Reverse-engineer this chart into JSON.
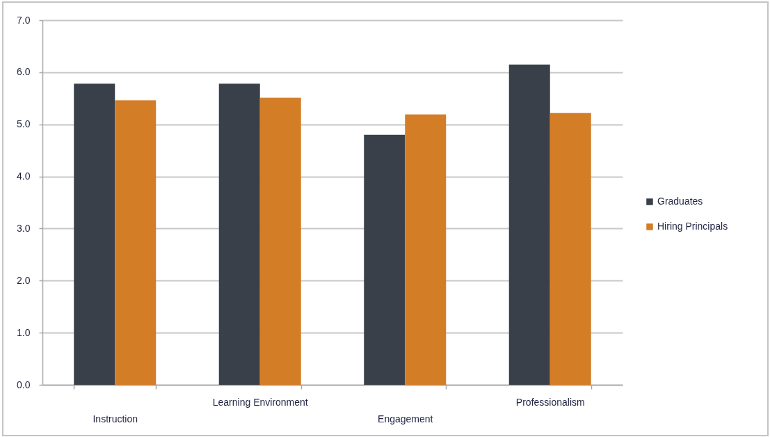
{
  "chart_data": {
    "type": "bar",
    "categories": [
      "Instruction",
      "Learning Environment",
      "Engagement",
      "Professionalism"
    ],
    "series": [
      {
        "name": "Graduates",
        "color": "#394049",
        "values": [
          5.78,
          5.78,
          4.8,
          6.15
        ]
      },
      {
        "name": "Hiring Principals",
        "color": "#d47d27",
        "values": [
          5.46,
          5.51,
          5.19,
          5.22
        ]
      }
    ],
    "ylim": [
      0,
      7
    ],
    "yticks": [
      {
        "value": 0,
        "label": "0.0"
      },
      {
        "value": 1,
        "label": "1.0"
      },
      {
        "value": 2,
        "label": "2.0"
      },
      {
        "value": 3,
        "label": "3.0"
      },
      {
        "value": 4,
        "label": "4.0"
      },
      {
        "value": 5,
        "label": "5.0"
      },
      {
        "value": 6,
        "label": "6.0"
      },
      {
        "value": 7,
        "label": "7.0"
      }
    ],
    "grid": "y",
    "legend": "right"
  }
}
